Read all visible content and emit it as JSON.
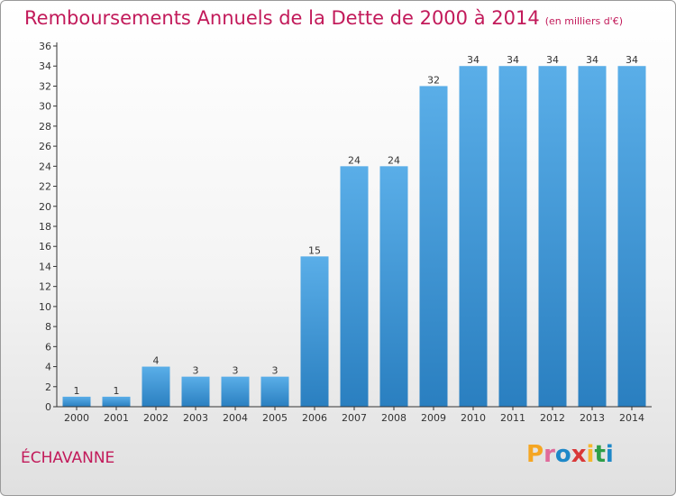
{
  "title": "Remboursements Annuels de la Dette de 2000 à 2014",
  "unit_note": "(en milliers d'€)",
  "commune": "ÉCHAVANNE",
  "brand": {
    "letters": [
      "P",
      "r",
      "o",
      "x",
      "i",
      "t",
      "i"
    ],
    "colors": [
      "#f5a623",
      "#e06a9a",
      "#1e88c8",
      "#d93838",
      "#f5b82e",
      "#2e9e48",
      "#1e88c8"
    ]
  },
  "colors": {
    "bar_light": "#5aaee8",
    "bar_dark": "#2a7fc0",
    "axis": "#333333",
    "grid": "#dddddd",
    "accent": "#c21a5a"
  },
  "chart_data": {
    "type": "bar",
    "categories": [
      "2000",
      "2001",
      "2002",
      "2003",
      "2004",
      "2005",
      "2006",
      "2007",
      "2008",
      "2009",
      "2010",
      "2011",
      "2012",
      "2013",
      "2014"
    ],
    "values": [
      1,
      1,
      4,
      3,
      3,
      3,
      15,
      24,
      24,
      32,
      34,
      34,
      34,
      34,
      34
    ],
    "ylim": [
      0,
      36
    ],
    "yticks": [
      0,
      2,
      4,
      6,
      8,
      10,
      12,
      14,
      16,
      18,
      20,
      22,
      24,
      26,
      28,
      30,
      32,
      34,
      36
    ],
    "title": "Remboursements Annuels de la Dette de 2000 à 2014",
    "xlabel": "",
    "ylabel": "",
    "grid": false,
    "data_labels": true
  }
}
